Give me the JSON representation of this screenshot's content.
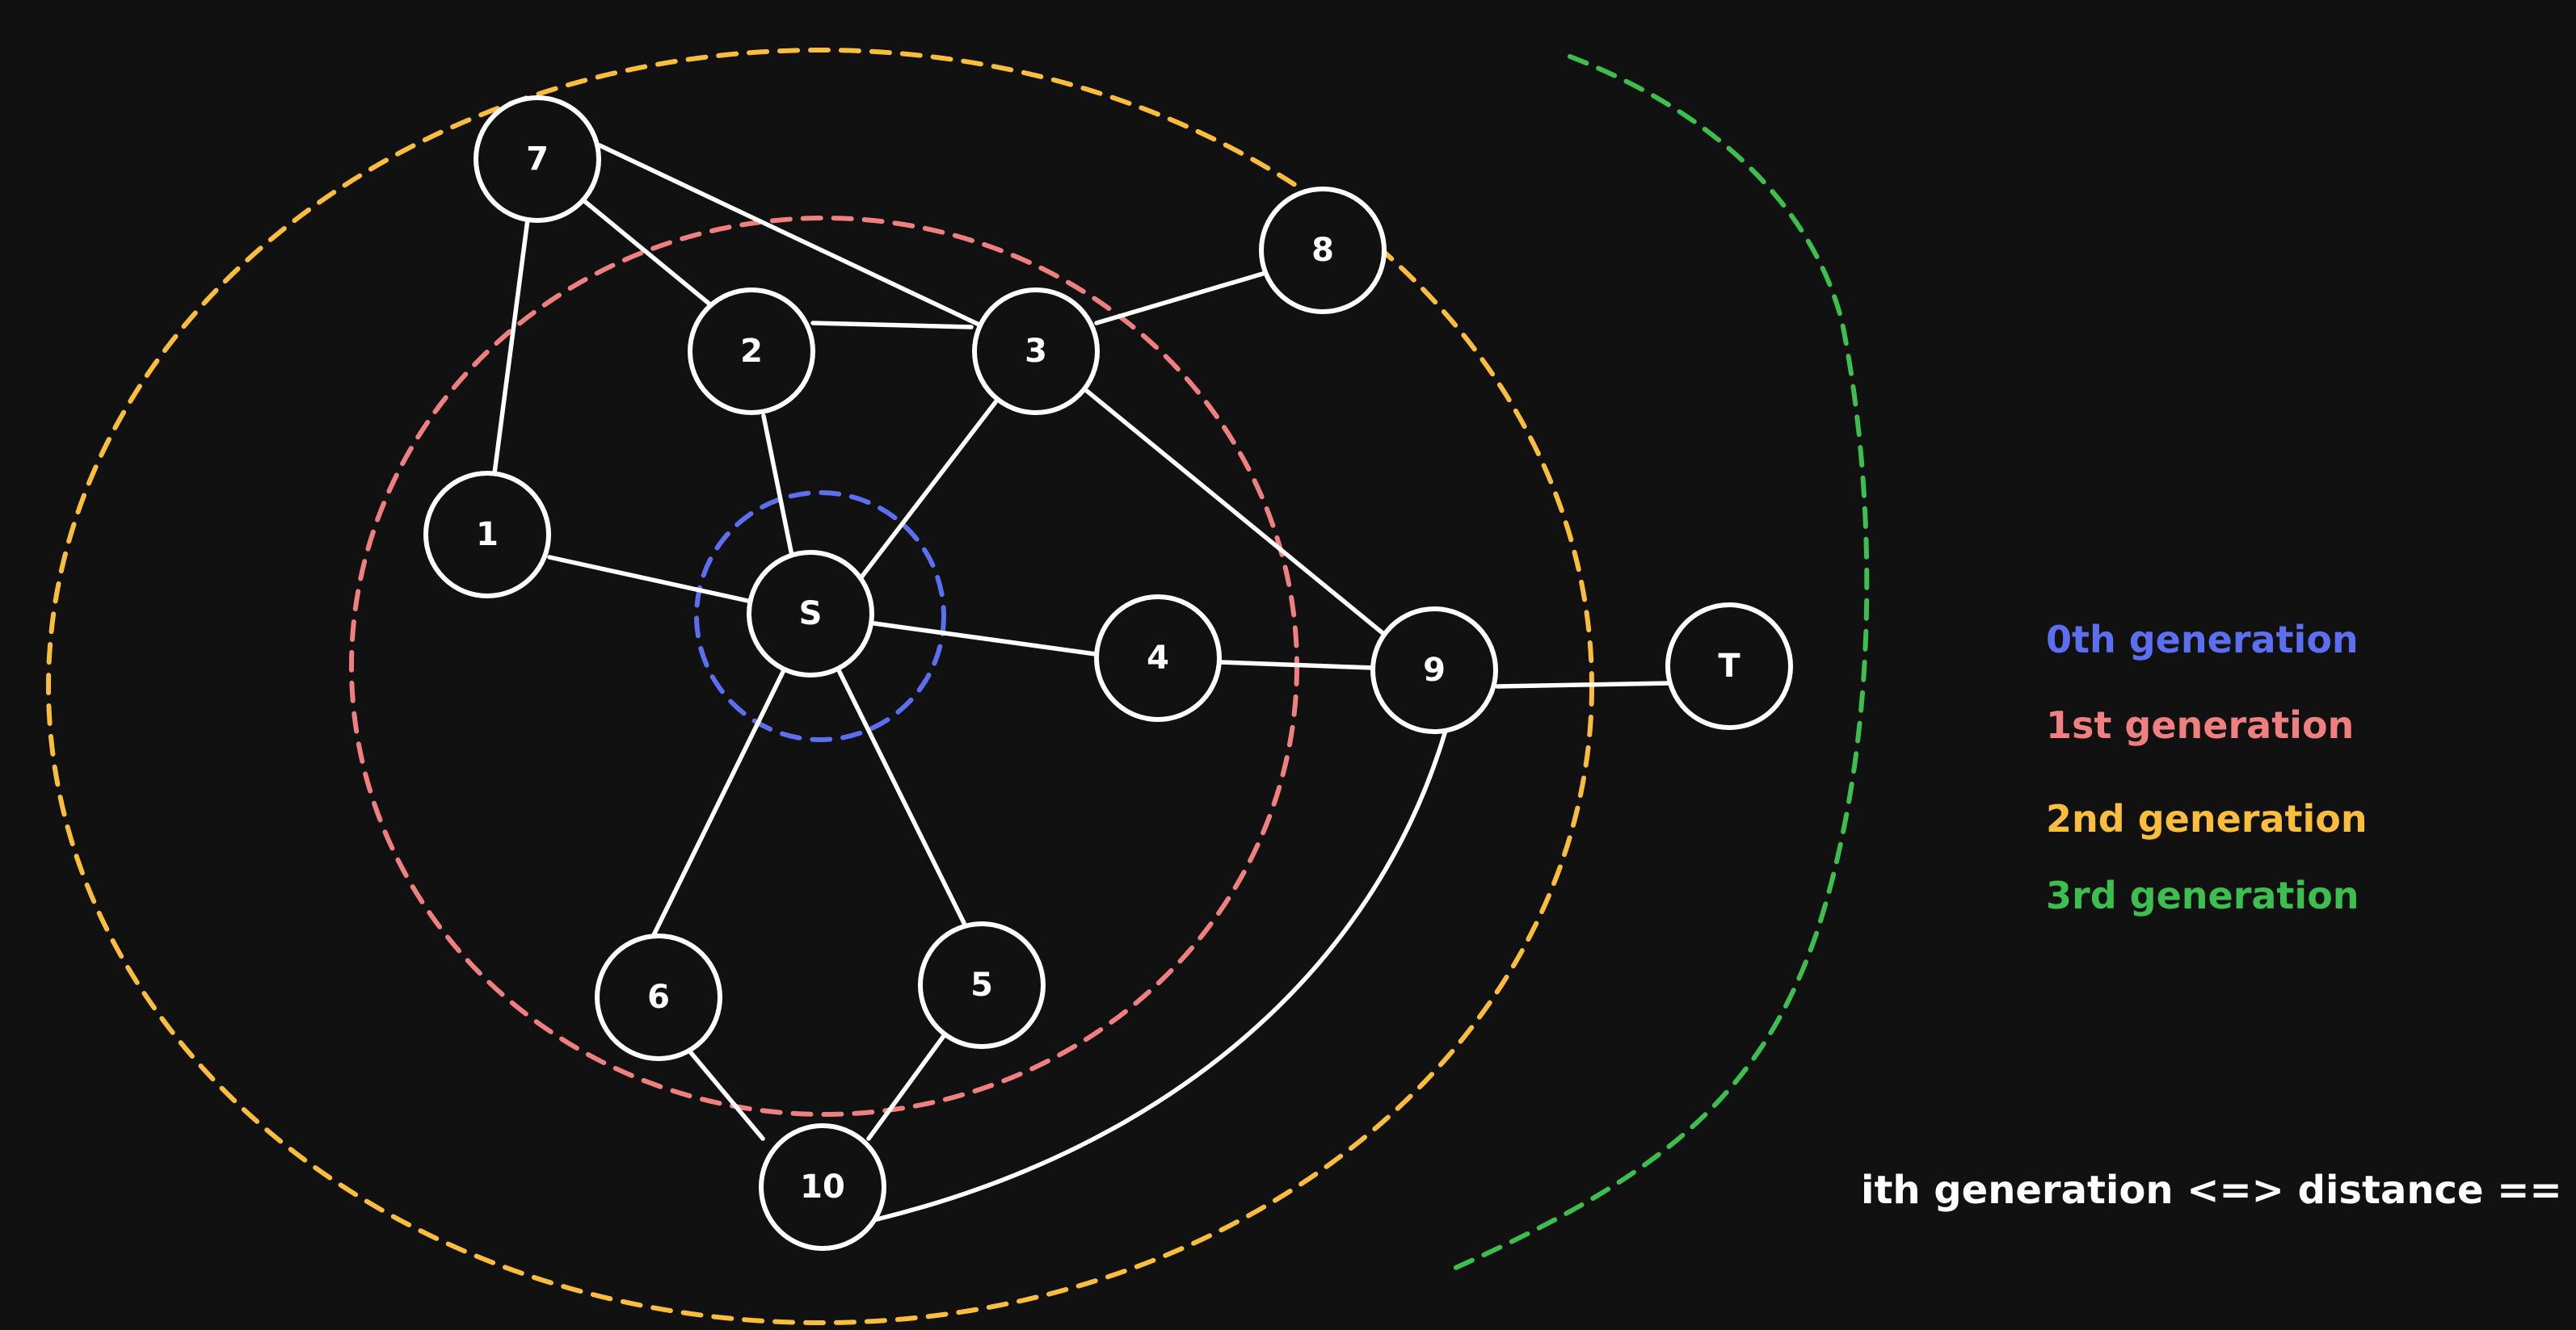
{
  "colors": {
    "background": "#111111",
    "node_stroke": "#ffffff",
    "gen0": "#5b6ff0",
    "gen1": "#f07f7f",
    "gen2": "#fbbd3c",
    "gen3": "#3cbf4f"
  },
  "nodes": [
    {
      "id": "n7",
      "label": "7"
    },
    {
      "id": "n8",
      "label": "8"
    },
    {
      "id": "n2",
      "label": "2"
    },
    {
      "id": "n3",
      "label": "3"
    },
    {
      "id": "n1",
      "label": "1"
    },
    {
      "id": "nS",
      "label": "S"
    },
    {
      "id": "n4",
      "label": "4"
    },
    {
      "id": "n9",
      "label": "9"
    },
    {
      "id": "nT",
      "label": "T"
    },
    {
      "id": "n6",
      "label": "6"
    },
    {
      "id": "n5",
      "label": "5"
    },
    {
      "id": "n10",
      "label": "10"
    }
  ],
  "edges": [
    [
      "7",
      "1"
    ],
    [
      "7",
      "2"
    ],
    [
      "7",
      "3"
    ],
    [
      "2",
      "3"
    ],
    [
      "2",
      "S"
    ],
    [
      "3",
      "8"
    ],
    [
      "3",
      "S"
    ],
    [
      "3",
      "9"
    ],
    [
      "1",
      "S"
    ],
    [
      "S",
      "4"
    ],
    [
      "S",
      "6"
    ],
    [
      "S",
      "5"
    ],
    [
      "4",
      "9"
    ],
    [
      "9",
      "T"
    ],
    [
      "9",
      "10"
    ],
    [
      "6",
      "10"
    ],
    [
      "5",
      "10"
    ]
  ],
  "legend": [
    {
      "label": "0th generation",
      "color": "#5b6ff0"
    },
    {
      "label": "1st generation",
      "color": "#f07f7f"
    },
    {
      "label": "2nd generation",
      "color": "#fbbd3c"
    },
    {
      "label": "3rd generation",
      "color": "#3cbf4f"
    }
  ],
  "footer": "ith generation <=> distance == i"
}
